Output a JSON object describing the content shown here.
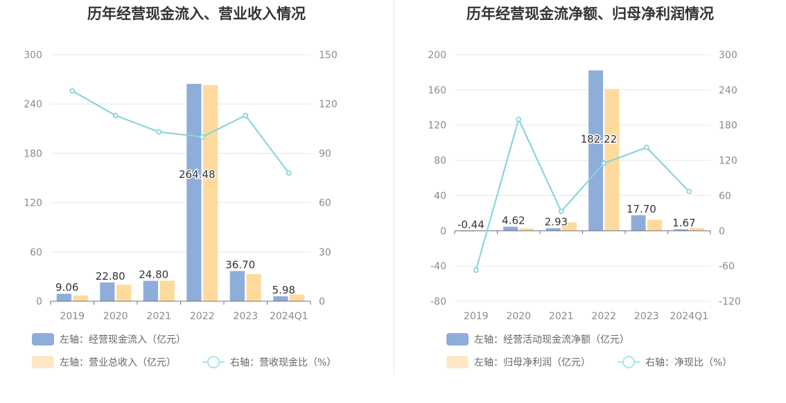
{
  "chart_data": [
    {
      "type": "bar",
      "title": "历年经营现金流入、营业收入情况",
      "categories": [
        "2019",
        "2020",
        "2021",
        "2022",
        "2023",
        "2024Q1"
      ],
      "left_axis": {
        "min": 0,
        "max": 300,
        "ticks": [
          "0",
          "60",
          "120",
          "180",
          "240",
          "300"
        ]
      },
      "right_axis": {
        "min": 0,
        "max": 150,
        "ticks": [
          "0",
          "30",
          "60",
          "90",
          "120",
          "150"
        ]
      },
      "series": [
        {
          "name": "左轴：经营现金流入（亿元）",
          "axis": "left",
          "kind": "bar",
          "color": "#8eadd9",
          "values": [
            9.06,
            22.8,
            24.8,
            264.48,
            36.7,
            5.98
          ],
          "labels": [
            "9.06",
            "22.80",
            "24.80",
            "264.48",
            "36.70",
            "5.98"
          ]
        },
        {
          "name": "左轴：营业总收入（亿元）",
          "axis": "left",
          "kind": "bar",
          "color": "#fedb9d",
          "values": [
            7,
            20,
            25,
            263,
            33,
            8
          ]
        },
        {
          "name": "右轴：营收现金比（%）",
          "axis": "right",
          "kind": "line",
          "color": "#89d5da",
          "values": [
            128,
            113,
            103,
            100,
            113,
            78
          ]
        }
      ],
      "grid": true,
      "legend_position": "bottom"
    },
    {
      "type": "bar",
      "title": "历年经营现金流净额、归母净利润情况",
      "categories": [
        "2019",
        "2020",
        "2021",
        "2022",
        "2023",
        "2024Q1"
      ],
      "left_axis": {
        "min": -80,
        "max": 200,
        "ticks": [
          "-80",
          "-40",
          "0",
          "40",
          "80",
          "120",
          "160",
          "200"
        ]
      },
      "right_axis": {
        "min": -120,
        "max": 300,
        "ticks": [
          "-120",
          "-60",
          "0",
          "60",
          "120",
          "180",
          "240",
          "300"
        ]
      },
      "series": [
        {
          "name": "左轴：经营活动现金流净额（亿元）",
          "axis": "left",
          "kind": "bar",
          "color": "#8eadd9",
          "values": [
            -0.44,
            4.62,
            2.93,
            182.22,
            17.7,
            1.67
          ],
          "labels": [
            "-0.44",
            "4.62",
            "2.93",
            "182.22",
            "17.70",
            "1.67"
          ]
        },
        {
          "name": "左轴：归母净利润（亿元）",
          "axis": "left",
          "kind": "bar",
          "color": "#fedb9d",
          "values": [
            0.6,
            2.5,
            9.5,
            161,
            12.5,
            3
          ]
        },
        {
          "name": "右轴：净现比（%）",
          "axis": "right",
          "kind": "line",
          "color": "#89d5da",
          "values": [
            -67,
            190,
            33,
            115,
            142,
            67
          ]
        }
      ],
      "grid": true,
      "legend_position": "bottom"
    }
  ]
}
